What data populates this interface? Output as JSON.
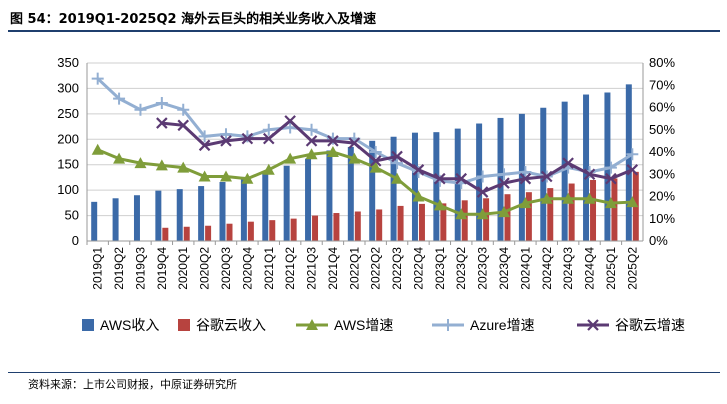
{
  "title": "图 54：2019Q1-2025Q2 海外云巨头的相关业务收入及增速",
  "source": "资料来源：上市公司财报，中原证券研究所",
  "chart_data": {
    "type": "bar",
    "categories": [
      "2019Q1",
      "2019Q2",
      "2019Q3",
      "2019Q4",
      "2020Q1",
      "2020Q2",
      "2020Q3",
      "2020Q4",
      "2021Q1",
      "2021Q2",
      "2021Q3",
      "2021Q4",
      "2022Q1",
      "2022Q2",
      "2022Q3",
      "2022Q4",
      "2023Q1",
      "2023Q2",
      "2023Q3",
      "2023Q4",
      "2024Q1",
      "2024Q2",
      "2024Q3",
      "2024Q4",
      "2025Q1",
      "2025Q2"
    ],
    "y_left": {
      "min": 0,
      "max": 350,
      "step": 50,
      "ticks": [
        "0",
        "50",
        "100",
        "150",
        "200",
        "250",
        "300",
        "350"
      ]
    },
    "y_right": {
      "min": 0,
      "max": 80,
      "step": 10,
      "ticks": [
        "0%",
        "10%",
        "20%",
        "30%",
        "40%",
        "50%",
        "60%",
        "70%",
        "80%"
      ]
    },
    "series": [
      {
        "name": "AWS收入",
        "kind": "bar",
        "axis": "left",
        "color": "#3b6aa8",
        "values": [
          77,
          84,
          90,
          99,
          102,
          108,
          116,
          126,
          135,
          148,
          162,
          178,
          185,
          197,
          205,
          213,
          214,
          221,
          231,
          242,
          250,
          262,
          274,
          288,
          292,
          308
        ]
      },
      {
        "name": "谷歌云收入",
        "kind": "bar",
        "axis": "left",
        "color": "#b7433f",
        "values": [
          null,
          null,
          null,
          26,
          28,
          30,
          34,
          38,
          41,
          44,
          50,
          55,
          58,
          62,
          69,
          73,
          74,
          80,
          84,
          92,
          96,
          104,
          113,
          120,
          123,
          136
        ]
      },
      {
        "name": "AWS增速",
        "kind": "line",
        "axis": "right",
        "color": "#7f9d3a",
        "marker": "triangle",
        "values": [
          41,
          37,
          35,
          34,
          33,
          29,
          29,
          28,
          32,
          37,
          39,
          40,
          37,
          33,
          28,
          20,
          16,
          12,
          12,
          13,
          17,
          19,
          19,
          19,
          17,
          17.5
        ]
      },
      {
        "name": "Azure增速",
        "kind": "line",
        "axis": "right",
        "color": "#93afd2",
        "marker": "plus",
        "values": [
          73,
          64,
          59,
          62,
          59,
          47,
          48,
          47,
          50,
          51,
          50,
          46,
          46,
          40,
          35,
          31,
          27,
          26,
          29,
          30,
          31,
          29,
          33,
          31,
          33,
          39
        ]
      },
      {
        "name": "谷歌云增速",
        "kind": "line",
        "axis": "right",
        "color": "#5b3a73",
        "marker": "x",
        "values": [
          null,
          null,
          null,
          53,
          52,
          43,
          45,
          46,
          46,
          54,
          45,
          45,
          44,
          36,
          38,
          32,
          28,
          28,
          22,
          26,
          28,
          29,
          35,
          30,
          28,
          32
        ]
      }
    ]
  }
}
